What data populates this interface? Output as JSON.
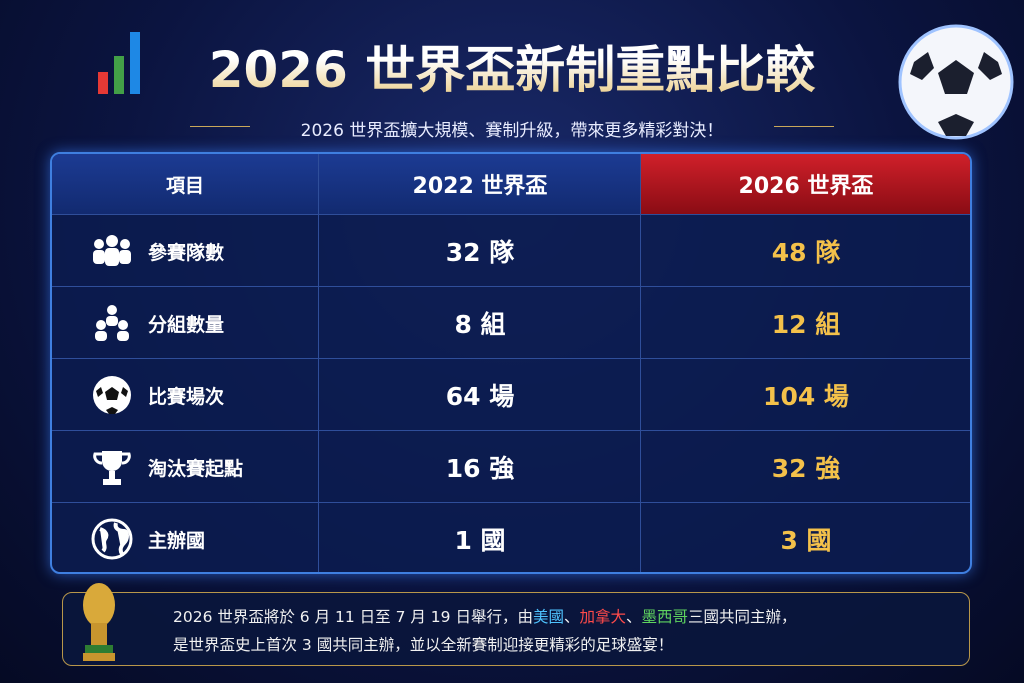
{
  "header": {
    "title": "2026 世界盃新制重點比較",
    "subtitle": "2026 世界盃擴大規模、賽制升級，帶來更多精彩對決！"
  },
  "table": {
    "columns": [
      "項目",
      "2022 世界盃",
      "2026 世界盃"
    ],
    "rows": [
      [
        "參賽隊數",
        "32 隊",
        "48 隊"
      ],
      [
        "分組數量",
        "8 組",
        "12 組"
      ],
      [
        "比賽場次",
        "64 場",
        "104 場"
      ],
      [
        "淘汰賽起點",
        "16 強",
        "32 強"
      ],
      [
        "主辦國",
        "1 國",
        "3 國"
      ]
    ]
  },
  "footer": {
    "line1": [
      "2026 世界盃將於 6 月 11 日至 7 月 19 日舉行，由",
      "美國",
      "、",
      "加拿大",
      "、",
      "墨西哥",
      "三國共同主辦，"
    ],
    "line2": "是世界盃史上首次 3 國共同主辦，並以全新賽制迎接更精彩的足球盛宴！"
  }
}
